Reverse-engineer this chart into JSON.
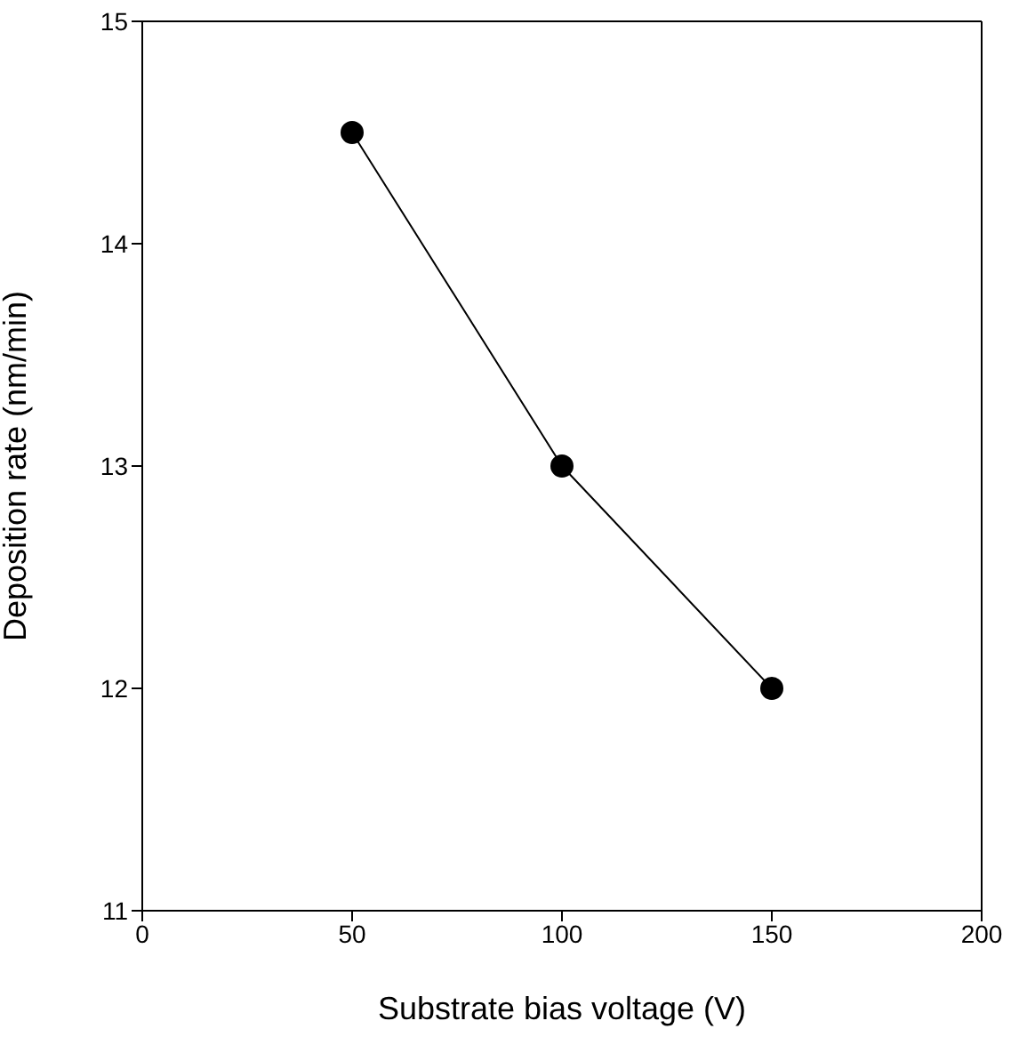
{
  "chart_data": {
    "type": "line",
    "xlabel": "Substrate bias voltage (V)",
    "ylabel": "Deposition rate (nm/min)",
    "x": [
      50,
      100,
      150
    ],
    "series": [
      {
        "color": "#000000",
        "values": [
          14.5,
          13,
          12
        ]
      }
    ],
    "xlim": [
      0,
      200
    ],
    "xticks": [
      0,
      50,
      100,
      150,
      200
    ],
    "ylim": [
      11,
      15
    ],
    "yticks": [
      11,
      12,
      13,
      14,
      15
    ],
    "grid": false,
    "legend": false,
    "marker": "circle",
    "line_style": "solid"
  }
}
